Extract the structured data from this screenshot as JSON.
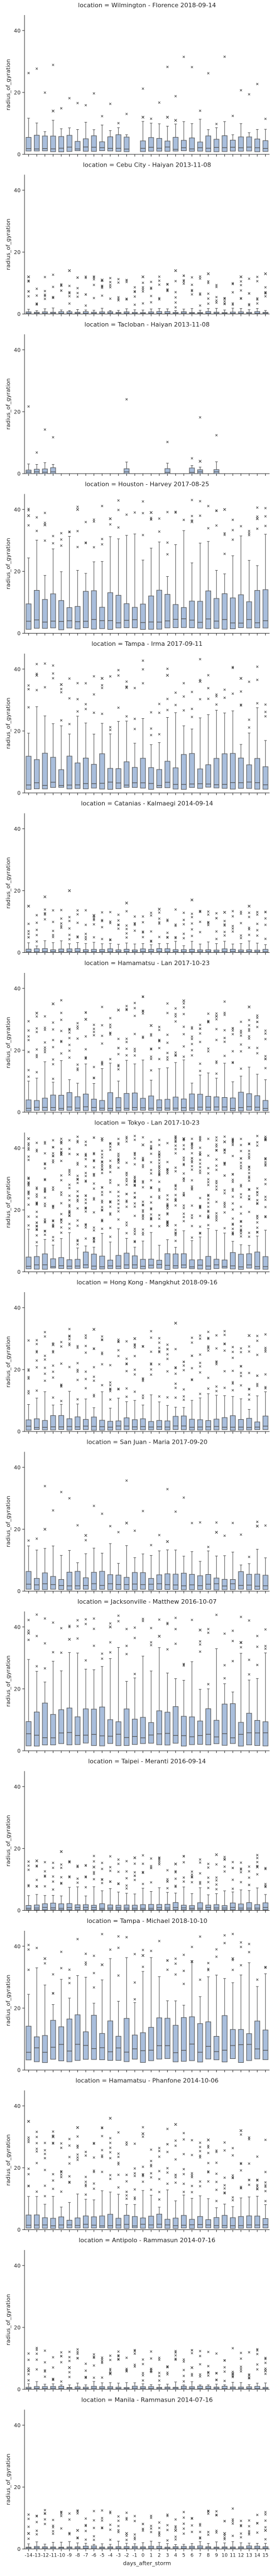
{
  "chart_data": {
    "type": "box",
    "layout": "faceted-vertical",
    "xlabel": "days_after_storm",
    "ylabel": "radius_of_gyration",
    "shared_x": true,
    "shared_y": true,
    "ylim": [
      0,
      45
    ],
    "yticks": [
      0,
      20,
      40
    ],
    "x_categories": [
      "-14",
      "-13",
      "-12",
      "-11",
      "-10",
      "-9",
      "-8",
      "-7",
      "-6",
      "-5",
      "-4",
      "-3",
      "-2",
      "-1",
      "0",
      "1",
      "2",
      "3",
      "4",
      "5",
      "6",
      "7",
      "8",
      "9",
      "10",
      "11",
      "12",
      "13",
      "14",
      "15"
    ],
    "x_tick_labels_shown_on": "last-panel",
    "grid": false,
    "box_color": "#a9bedc",
    "edge_color": "#555555",
    "median_color": "#555555",
    "panels": [
      {
        "title": "location = Wilmington - Florence 2018-09-14",
        "profile": "sparse",
        "q1": 1.0,
        "median": 2.0,
        "q3": 5.0,
        "whisker_high": 9,
        "outliers": [
          [
            3,
            14
          ],
          [
            14,
            12
          ],
          [
            17,
            12
          ],
          [
            18,
            11
          ]
        ],
        "missing_days": [
          13
        ]
      },
      {
        "title": "location = Cebu City - Haiyan 2013-11-08",
        "profile": "flat",
        "q1": 0.0,
        "median": 0.2,
        "q3": 0.6,
        "whisker_high": 1.5,
        "outliers": [
          [
            0,
            12
          ],
          [
            5,
            14
          ],
          [
            9,
            11
          ],
          [
            14,
            12
          ],
          [
            18,
            14
          ],
          [
            22,
            13
          ],
          [
            26,
            12
          ],
          [
            29,
            13
          ]
        ]
      },
      {
        "title": "location = Tacloban - Haiyan 2013-11-08",
        "profile": "sparse-flat",
        "q1": 0.0,
        "median": 0.5,
        "q3": 1.5,
        "whisker_high": 3,
        "outliers": [
          [
            21,
            4
          ]
        ],
        "missing_days": [
          4,
          5,
          6,
          7,
          8,
          9,
          10,
          11,
          13,
          14,
          15,
          16,
          18,
          19,
          22,
          24,
          25,
          26,
          27,
          28,
          29
        ]
      },
      {
        "title": "location = Houston - Harvey 2017-08-25",
        "profile": "wide",
        "q1": 1.5,
        "median": 4.0,
        "q3": 11.0,
        "whisker_high": 26,
        "outliers": [
          [
            0,
            38
          ],
          [
            2,
            35
          ],
          [
            6,
            40
          ],
          [
            10,
            37
          ],
          [
            15,
            39
          ],
          [
            20,
            36
          ],
          [
            24,
            40
          ],
          [
            28,
            37
          ]
        ]
      },
      {
        "title": "location = Tampa - Irma 2017-09-11",
        "profile": "wide",
        "q1": 1.5,
        "median": 3.0,
        "q3": 10.0,
        "whisker_high": 22,
        "outliers": [
          [
            1,
            38
          ],
          [
            4,
            35
          ],
          [
            9,
            37
          ],
          [
            12,
            34
          ],
          [
            17,
            38
          ],
          [
            21,
            36
          ],
          [
            26,
            37
          ]
        ]
      },
      {
        "title": "location = Catanias - Kalmaegi 2014-09-14",
        "profile": "flat",
        "q1": 0.0,
        "median": 0.3,
        "q3": 1.0,
        "whisker_high": 3,
        "outliers": [
          [
            0,
            15
          ],
          [
            2,
            18
          ],
          [
            5,
            20
          ],
          [
            8,
            12
          ],
          [
            12,
            16
          ],
          [
            16,
            14
          ],
          [
            20,
            17
          ],
          [
            24,
            13
          ],
          [
            27,
            15
          ]
        ]
      },
      {
        "title": "location = Hamamatsu - Lan 2017-10-23",
        "profile": "medium",
        "q1": 0.5,
        "median": 1.5,
        "q3": 5.0,
        "whisker_high": 13,
        "outliers": [
          [
            1,
            32
          ],
          [
            3,
            35
          ],
          [
            7,
            30
          ],
          [
            11,
            33
          ],
          [
            15,
            28
          ],
          [
            19,
            36
          ],
          [
            23,
            31
          ],
          [
            27,
            34
          ]
        ]
      },
      {
        "title": "location = Tokyo - Lan 2017-10-23",
        "profile": "dense",
        "q1": 1.0,
        "median": 2.0,
        "q3": 5.0,
        "whisker_high": 11,
        "outliers": [
          [
            0,
            43
          ],
          [
            4,
            42
          ],
          [
            9,
            43
          ],
          [
            14,
            41
          ],
          [
            19,
            43
          ],
          [
            24,
            42
          ],
          [
            29,
            43
          ]
        ]
      },
      {
        "title": "location = Hong Kong - Mangkhut 2018-09-16",
        "profile": "medium",
        "q1": 0.5,
        "median": 1.5,
        "q3": 4.0,
        "whisker_high": 10,
        "outliers": [
          [
            3,
            28
          ],
          [
            8,
            33
          ],
          [
            13,
            30
          ],
          [
            18,
            35
          ],
          [
            22,
            27
          ],
          [
            27,
            31
          ]
        ]
      },
      {
        "title": "location = San Juan - Maria 2017-09-20",
        "profile": "sparse",
        "q1": 0.5,
        "median": 2.0,
        "q3": 5.0,
        "whisker_high": 12,
        "outliers": [
          [
            2,
            20
          ],
          [
            7,
            18
          ],
          [
            12,
            22
          ],
          [
            17,
            16
          ],
          [
            23,
            19
          ],
          [
            28,
            21
          ]
        ]
      },
      {
        "title": "location = Jacksonville - Matthew 2016-10-07",
        "profile": "wide",
        "q1": 2.0,
        "median": 5.0,
        "q3": 12.0,
        "whisker_high": 26,
        "outliers": [
          [
            0,
            38
          ],
          [
            5,
            36
          ],
          [
            10,
            40
          ],
          [
            16,
            37
          ],
          [
            21,
            39
          ],
          [
            26,
            35
          ]
        ]
      },
      {
        "title": "location = Taipei - Meranti 2016-09-14",
        "profile": "flat",
        "q1": 0.2,
        "median": 0.8,
        "q3": 2.0,
        "whisker_high": 6,
        "outliers": [
          [
            1,
            16
          ],
          [
            4,
            19
          ],
          [
            8,
            14
          ],
          [
            13,
            17
          ],
          [
            18,
            15
          ],
          [
            23,
            18
          ],
          [
            28,
            14
          ]
        ]
      },
      {
        "title": "location = Tampa - Michael 2018-10-10",
        "profile": "wide",
        "q1": 3.0,
        "median": 7.0,
        "q3": 14.0,
        "whisker_high": 28,
        "outliers": [
          [
            2,
            36
          ],
          [
            9,
            34
          ],
          [
            14,
            37
          ],
          [
            20,
            35
          ],
          [
            25,
            36
          ]
        ]
      },
      {
        "title": "location = Hamamatsu - Phanfone 2014-10-06",
        "profile": "medium",
        "q1": 0.5,
        "median": 1.5,
        "q3": 4.0,
        "whisker_high": 10,
        "outliers": [
          [
            0,
            35
          ],
          [
            3,
            30
          ],
          [
            6,
            33
          ],
          [
            10,
            36
          ],
          [
            14,
            31
          ],
          [
            18,
            34
          ],
          [
            22,
            29
          ],
          [
            26,
            32
          ]
        ]
      },
      {
        "title": "location = Antipolo - Rammasun 2014-07-16",
        "profile": "flat",
        "q1": 0.0,
        "median": 0.3,
        "q3": 0.8,
        "whisker_high": 2,
        "outliers": [
          [
            0,
            6
          ],
          [
            5,
            7
          ],
          [
            10,
            5
          ],
          [
            15,
            6
          ],
          [
            20,
            7
          ],
          [
            25,
            5
          ],
          [
            29,
            6
          ]
        ]
      },
      {
        "title": "location = Manila - Rammasun 2014-07-16",
        "profile": "flat",
        "q1": 0.0,
        "median": 0.3,
        "q3": 0.8,
        "whisker_high": 2,
        "outliers": [
          [
            0,
            5
          ],
          [
            6,
            6
          ],
          [
            12,
            5
          ],
          [
            18,
            6
          ],
          [
            24,
            5
          ],
          [
            29,
            6
          ]
        ]
      }
    ]
  }
}
